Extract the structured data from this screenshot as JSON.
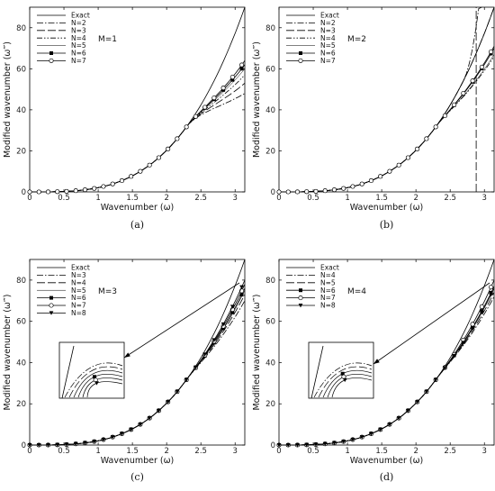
{
  "chart_data": [
    {
      "type": "line",
      "caption": "(a)",
      "annotation": "M=1",
      "xlabel": "Wavenumber (ω)",
      "ylabel": "Modified wavenumber (ω‴)",
      "xlim": [
        0,
        3.1416
      ],
      "ylim": [
        0,
        90
      ],
      "xticks": [
        "0",
        "0.5",
        "1",
        "1.5",
        "2",
        "2.5",
        "3"
      ],
      "yticks": [
        "0",
        "20",
        "40",
        "60",
        "80"
      ],
      "legend_position": "top-left",
      "inset": false,
      "exact_end": 90,
      "series": [
        {
          "name": "Exact",
          "style": "solid",
          "marker": "none",
          "end": 90
        },
        {
          "name": "N=2",
          "style": "dashdot",
          "marker": "none",
          "end": 48
        },
        {
          "name": "N=3",
          "style": "longdash",
          "marker": "none",
          "end": 53
        },
        {
          "name": "N=4",
          "style": "dashdotdot",
          "marker": "none",
          "end": 57
        },
        {
          "name": "N=5",
          "style": "thin",
          "marker": "none",
          "end": 60
        },
        {
          "name": "N=6",
          "style": "solid",
          "marker": "square",
          "end": 62
        },
        {
          "name": "N=7",
          "style": "solid",
          "marker": "circle",
          "end": 64
        }
      ]
    },
    {
      "type": "line",
      "caption": "(b)",
      "annotation": "M=2",
      "xlabel": "Wavenumber (ω)",
      "ylabel": "Modified wavenumber (ω‴)",
      "xlim": [
        0,
        3.1416
      ],
      "ylim": [
        0,
        90
      ],
      "xticks": [
        "0",
        "0.5",
        "1",
        "1.5",
        "2",
        "2.5",
        "3"
      ],
      "yticks": [
        "0",
        "20",
        "40",
        "60",
        "80"
      ],
      "legend_position": "top-left",
      "inset": false,
      "exact_end": 90,
      "series": [
        {
          "name": "Exact",
          "style": "solid",
          "marker": "none",
          "end": 90
        },
        {
          "name": "N=2",
          "style": "dashdot",
          "marker": "none",
          "end": 90,
          "diverge_at": 2.7
        },
        {
          "name": "N=3",
          "style": "longdash",
          "marker": "none",
          "end": 90,
          "vertical_at": 2.88
        },
        {
          "name": "N=4",
          "style": "dashdotdot",
          "marker": "none",
          "end": 66
        },
        {
          "name": "N=5",
          "style": "thin",
          "marker": "none",
          "end": 67
        },
        {
          "name": "N=6",
          "style": "solid",
          "marker": "square",
          "end": 70
        },
        {
          "name": "N=7",
          "style": "solid",
          "marker": "circle",
          "end": 71
        }
      ]
    },
    {
      "type": "line",
      "caption": "(c)",
      "annotation": "M=3",
      "xlabel": "Wavenumber (ω)",
      "ylabel": "Modified wavenumber (ω‴)",
      "xlim": [
        0,
        3.1416
      ],
      "ylim": [
        0,
        90
      ],
      "xticks": [
        "0",
        "0.5",
        "1",
        "1.5",
        "2",
        "2.5",
        "3"
      ],
      "yticks": [
        "0",
        "20",
        "40",
        "60",
        "80"
      ],
      "legend_position": "top-left",
      "inset": true,
      "exact_end": 90,
      "series": [
        {
          "name": "Exact",
          "style": "solid",
          "marker": "none",
          "end": 90
        },
        {
          "name": "N=3",
          "style": "dashdot",
          "marker": "none",
          "end": 70
        },
        {
          "name": "N=4",
          "style": "longdash",
          "marker": "none",
          "end": 73
        },
        {
          "name": "N=5",
          "style": "thin",
          "marker": "none",
          "end": 75
        },
        {
          "name": "N=6",
          "style": "solid",
          "marker": "square",
          "end": 76
        },
        {
          "name": "N=7",
          "style": "solid",
          "marker": "circle",
          "end": 78
        },
        {
          "name": "N=8",
          "style": "solid",
          "marker": "triangle",
          "end": 80
        }
      ]
    },
    {
      "type": "line",
      "caption": "(d)",
      "annotation": "M=4",
      "xlabel": "Wavenumber (ω)",
      "ylabel": "Modified wavenumber (ω‴)",
      "xlim": [
        0,
        3.1416
      ],
      "ylim": [
        0,
        90
      ],
      "xticks": [
        "0",
        "0.5",
        "1",
        "1.5",
        "2",
        "2.5",
        "3"
      ],
      "yticks": [
        "0",
        "20",
        "40",
        "60",
        "80"
      ],
      "legend_position": "top-left",
      "inset": true,
      "exact_end": 90,
      "series": [
        {
          "name": "Exact",
          "style": "solid",
          "marker": "none",
          "end": 90
        },
        {
          "name": "N=4",
          "style": "dashdot",
          "marker": "none",
          "end": 72
        },
        {
          "name": "N=5",
          "style": "longdash",
          "marker": "none",
          "end": 74
        },
        {
          "name": "N=6",
          "style": "solid",
          "marker": "square",
          "end": 77
        },
        {
          "name": "N=7",
          "style": "solid",
          "marker": "circle",
          "end": 80
        },
        {
          "name": "N=8",
          "style": "solid",
          "marker": "triangle",
          "end": 76
        }
      ]
    }
  ]
}
